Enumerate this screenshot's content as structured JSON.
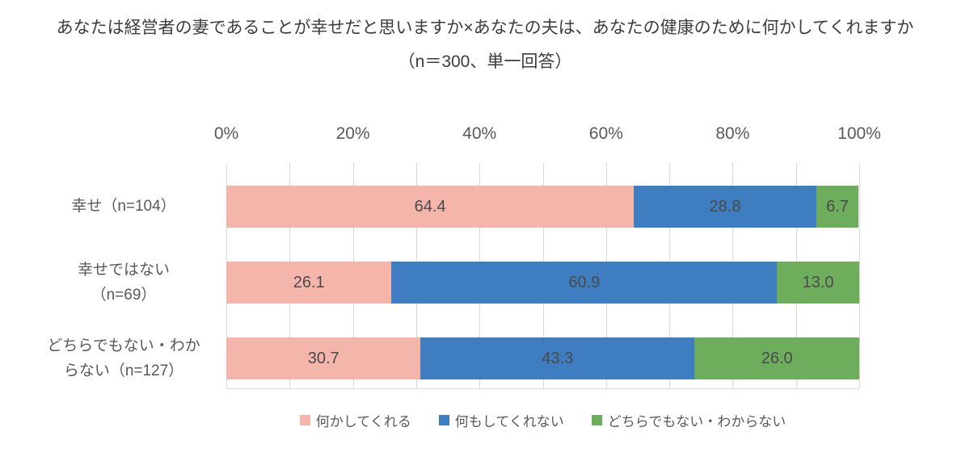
{
  "title": "あなたは経営者の妻であることが幸せだと思いますか×あなたの夫は、あなたの健康のために何かしてくれますか",
  "subtitle": "（n＝300、単一回答）",
  "chart_data": {
    "type": "bar",
    "orientation": "horizontal",
    "stacked": true,
    "title": "あなたは経営者の妻であることが幸せだと思いますか×あなたの夫は、あなたの健康のために何かしてくれますか（n＝300、単一回答）",
    "categories": [
      "幸せ（n=104）",
      "幸せではない\n（n=69）",
      "どちらでもない・わか\nらない（n=127）"
    ],
    "series": [
      {
        "name": "何かしてくれる",
        "color": "#f4b6aa",
        "values": [
          64.4,
          26.1,
          30.7
        ],
        "value_labels": [
          "64.4",
          "26.1",
          "30.7"
        ]
      },
      {
        "name": "何もしてくれない",
        "color": "#3e7dbf",
        "values": [
          28.8,
          60.9,
          43.3
        ],
        "value_labels": [
          "28.8",
          "60.9",
          "43.3"
        ]
      },
      {
        "name": "どちらでもない・わからない",
        "color": "#6ead5c",
        "values": [
          6.7,
          13.0,
          26.0
        ],
        "value_labels": [
          "6.7",
          "13.0",
          "26.0"
        ]
      }
    ],
    "x_ticks": [
      "0%",
      "20%",
      "40%",
      "60%",
      "80%",
      "100%"
    ],
    "xlim": [
      0,
      100
    ],
    "grid": true,
    "grid_step": 10,
    "grid_color": "#d9d9d9",
    "legend_position": "bottom"
  }
}
